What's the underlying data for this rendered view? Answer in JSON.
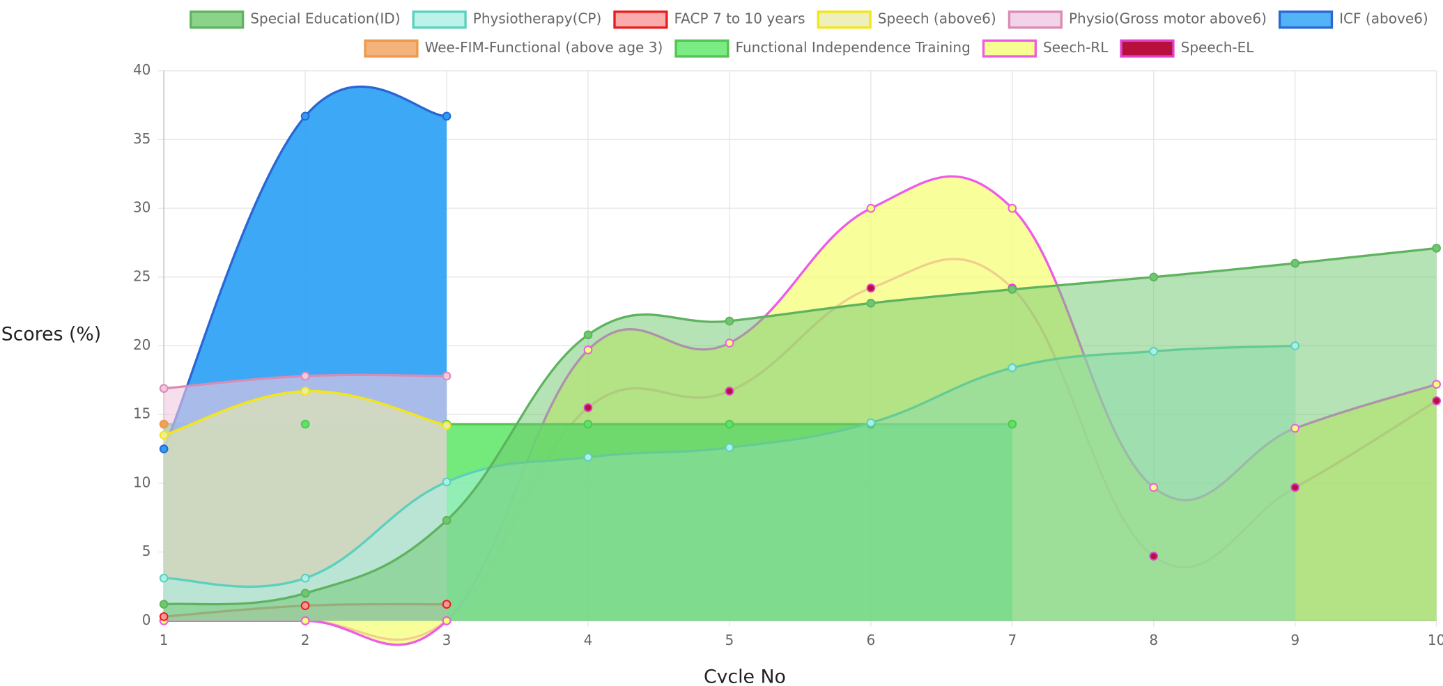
{
  "chart_data": {
    "type": "line",
    "x_label": "Cycle No",
    "y_label": "Scores (%)",
    "x": [
      1,
      2,
      3,
      4,
      5,
      6,
      7,
      8,
      9,
      10
    ],
    "xlim": [
      1,
      10
    ],
    "xticks": [
      1,
      2,
      3,
      4,
      5,
      6,
      7,
      8,
      9,
      10
    ],
    "ylim": [
      0,
      40
    ],
    "yticks": [
      0,
      5,
      10,
      15,
      20,
      25,
      30,
      35,
      40
    ],
    "grid": true,
    "legend": "top",
    "series": [
      {
        "name": "Special Education(ID)",
        "color": "#5fb35f",
        "fill": "rgba(110,200,110,0.5)",
        "values": [
          1.2,
          2.0,
          7.3,
          20.8,
          21.8,
          23.1,
          24.1,
          25.0,
          26.0,
          27.1
        ]
      },
      {
        "name": "Physiotherapy(CP)",
        "color": "#5ccfbd",
        "fill": "rgba(170,240,230,0.55)",
        "values": [
          3.1,
          3.1,
          10.1,
          11.9,
          12.6,
          14.4,
          18.4,
          19.6,
          20.0,
          null
        ]
      },
      {
        "name": "FACP 7 to 10 years",
        "color": "#e81c1c",
        "fill": "rgba(250,150,150,0.6)",
        "values": [
          0.3,
          1.1,
          1.2,
          null,
          null,
          null,
          null,
          null,
          null,
          null
        ]
      },
      {
        "name": "Speech (above6)",
        "color": "#f2e61a",
        "fill": "rgba(235,235,170,0.6)",
        "values": [
          13.5,
          16.7,
          14.2,
          null,
          null,
          null,
          null,
          null,
          null,
          null
        ]
      },
      {
        "name": "Physio(Gross motor above6)",
        "color": "#d98cb3",
        "fill": "rgba(240,200,225,0.6)",
        "values": [
          16.9,
          17.8,
          17.8,
          null,
          null,
          null,
          null,
          null,
          null,
          null
        ]
      },
      {
        "name": "ICF (above6)",
        "color": "#2a66d4",
        "fill": "rgba(40,160,245,0.9)",
        "values": [
          12.5,
          36.7,
          36.7,
          null,
          null,
          null,
          null,
          null,
          null,
          null
        ]
      },
      {
        "name": "Wee-FIM-Functional (above age 3)",
        "color": "#ee9a4a",
        "fill": "rgba(240,160,90,0.8)",
        "values": [
          14.3,
          null,
          null,
          null,
          null,
          null,
          null,
          null,
          null,
          null
        ]
      },
      {
        "name": "Functional Independence Training",
        "color": "#55c455",
        "fill": "rgba(90,230,100,0.85)",
        "values": [
          14.3,
          14.3,
          14.3,
          14.3,
          14.3,
          14.3,
          14.3,
          null,
          null,
          null
        ]
      },
      {
        "name": "Seech-RL",
        "color": "#ee5ce6",
        "fill": "rgba(245,255,120,0.75)",
        "values": [
          0,
          0,
          0,
          19.7,
          20.2,
          30,
          30,
          9.7,
          14.0,
          17.2
        ]
      },
      {
        "name": "Speech-EL",
        "color": "#e040d0",
        "fill": "rgba(170,20,20,0.0)",
        "point": "#b8103c",
        "values": [
          0,
          0,
          0,
          15.5,
          16.7,
          24.2,
          24.2,
          4.7,
          9.7,
          16.0
        ]
      }
    ]
  }
}
